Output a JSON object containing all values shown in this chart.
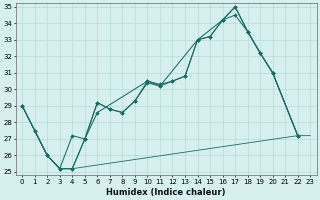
{
  "xlabel": "Humidex (Indice chaleur)",
  "background_color": "#d6f0ef",
  "grid_color": "#b8dbd9",
  "line_color": "#1a6b63",
  "xlim": [
    -0.5,
    23.5
  ],
  "ylim": [
    24.8,
    35.2
  ],
  "xticks": [
    0,
    1,
    2,
    3,
    4,
    5,
    6,
    7,
    8,
    9,
    10,
    11,
    12,
    13,
    14,
    15,
    16,
    17,
    18,
    19,
    20,
    21,
    22,
    23
  ],
  "yticks": [
    25,
    26,
    27,
    28,
    29,
    30,
    31,
    32,
    33,
    34,
    35
  ],
  "line1_x": [
    0,
    1,
    2,
    3,
    4,
    5,
    6,
    7,
    8,
    9,
    10,
    11,
    12,
    13,
    14,
    15,
    16,
    17,
    18,
    19,
    20,
    22
  ],
  "line1_y": [
    29.0,
    27.5,
    26.0,
    25.2,
    27.2,
    27.0,
    29.2,
    28.8,
    28.6,
    29.3,
    30.4,
    30.2,
    30.5,
    30.8,
    33.0,
    33.2,
    34.2,
    35.0,
    33.5,
    32.2,
    31.0,
    27.2
  ],
  "line2_x": [
    0,
    1,
    2,
    3,
    4,
    5,
    6,
    7,
    8,
    9,
    10,
    11,
    12,
    13,
    14,
    15,
    16,
    17,
    18,
    19,
    20,
    22
  ],
  "line2_y": [
    29.0,
    27.5,
    26.0,
    25.2,
    25.2,
    27.0,
    29.2,
    28.8,
    28.6,
    29.3,
    30.5,
    30.3,
    30.5,
    30.8,
    33.0,
    33.2,
    34.2,
    34.5,
    33.5,
    32.2,
    31.0,
    27.2
  ],
  "line3_x": [
    0,
    2,
    3,
    4,
    5,
    6,
    10,
    11,
    14,
    16,
    17,
    18,
    19,
    20,
    22
  ],
  "line3_y": [
    29.0,
    26.0,
    25.2,
    25.2,
    27.0,
    28.6,
    30.5,
    30.2,
    33.0,
    34.2,
    35.0,
    33.5,
    32.2,
    31.0,
    27.2
  ],
  "line4_x": [
    1,
    2,
    3,
    4,
    22,
    23
  ],
  "line4_y": [
    27.5,
    26.0,
    25.2,
    25.2,
    27.2,
    27.2
  ]
}
